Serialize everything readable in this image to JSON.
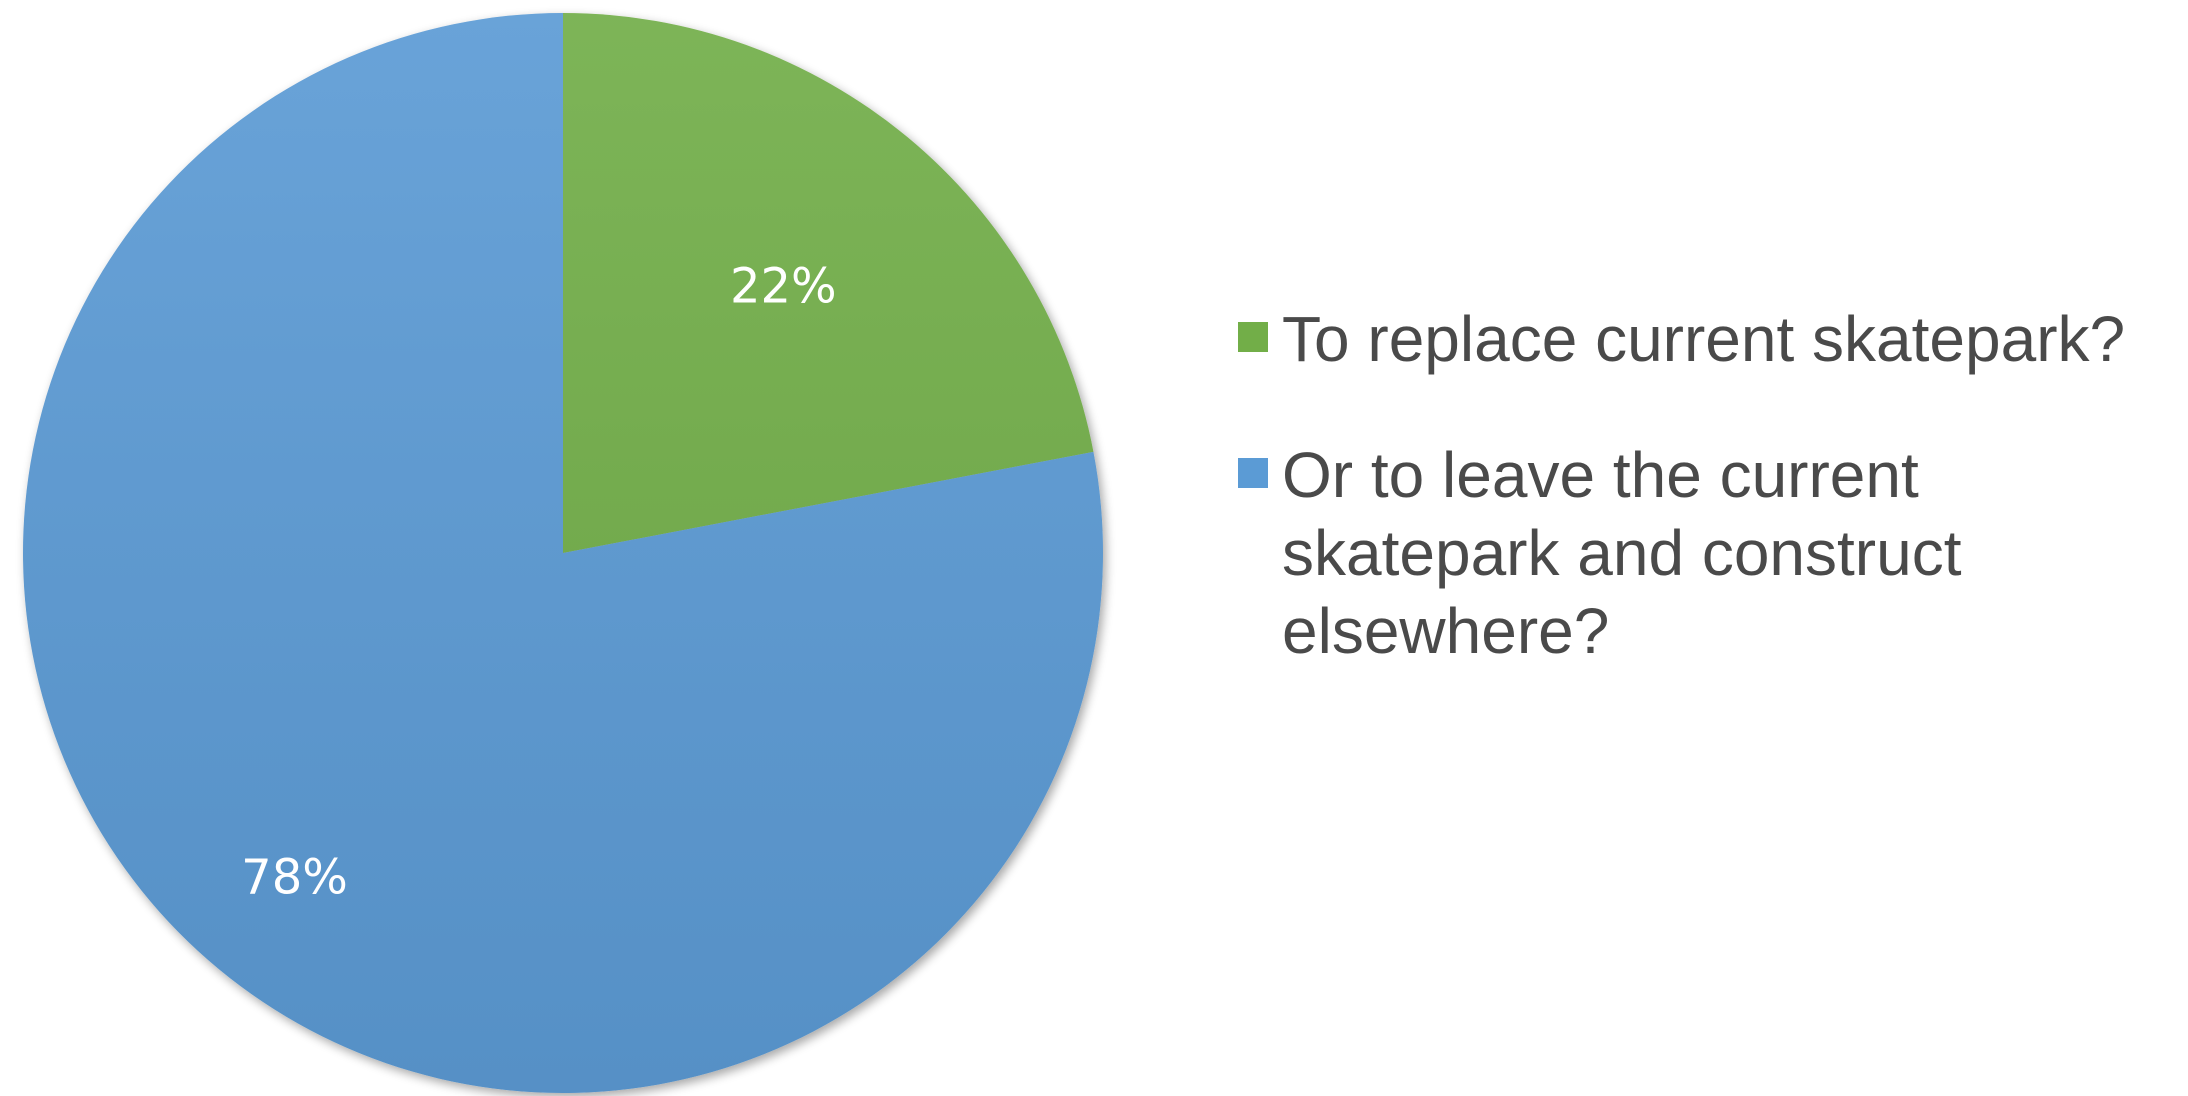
{
  "chart_data": {
    "type": "pie",
    "title": "",
    "slices": [
      {
        "name": "To replace current skatepark?",
        "value": 22,
        "label": "22%",
        "color": "#72ae48"
      },
      {
        "name": "Or to leave the current skatepark and construct elsewhere?",
        "value": 78,
        "label": "78%",
        "color": "#5b9bd5"
      }
    ],
    "legend_placement": "right",
    "start_angle": "12 o'clock",
    "direction": "clockwise"
  },
  "legend": {
    "items": [
      {
        "label": "To replace current skatepark?",
        "color": "#72ae48"
      },
      {
        "label": "Or to leave the current skatepark and construct elsewhere?",
        "color": "#5b9bd5"
      }
    ]
  }
}
